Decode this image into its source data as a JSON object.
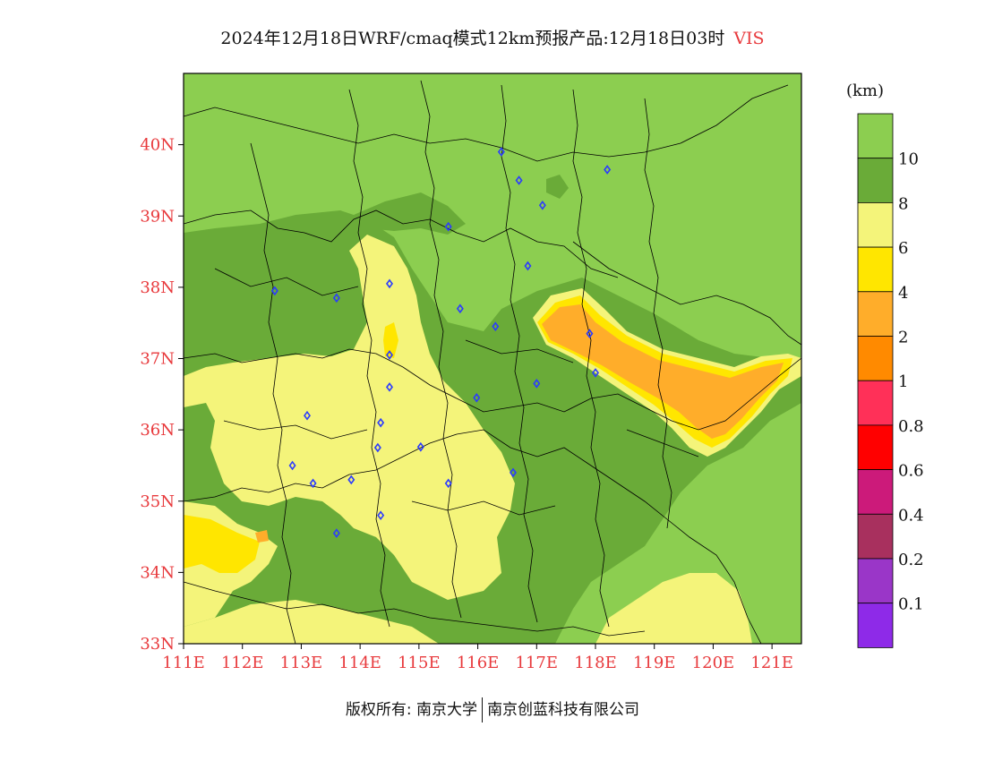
{
  "title": {
    "main": "2024年12月18日WRF/cmaq模式12km预报产品:12月18日03时",
    "variable": "VIS"
  },
  "colorbar": {
    "unit": "(km)",
    "bands": [
      {
        "color": "#8cce50",
        "label": "10"
      },
      {
        "color": "#6aab38",
        "label": "8"
      },
      {
        "color": "#f4f47a",
        "label": "6"
      },
      {
        "color": "#ffe600",
        "label": "4"
      },
      {
        "color": "#ffad2a",
        "label": "2"
      },
      {
        "color": "#ff8a00",
        "label": "1"
      },
      {
        "color": "#ff3058",
        "label": "0.8"
      },
      {
        "color": "#ff0000",
        "label": "0.6"
      },
      {
        "color": "#cc1a7a",
        "label": "0.4"
      },
      {
        "color": "#a8305e",
        "label": "0.2"
      },
      {
        "color": "#9a36c8",
        "label": "0.1"
      },
      {
        "color": "#8e2ae8",
        "label": ""
      }
    ]
  },
  "axes": {
    "lat_labels": [
      "40N",
      "39N",
      "38N",
      "37N",
      "36N",
      "35N",
      "34N",
      "33N"
    ],
    "lon_labels": [
      "111E",
      "112E",
      "113E",
      "114E",
      "115E",
      "116E",
      "117E",
      "118E",
      "119E",
      "120E",
      "121E"
    ],
    "lat_range": [
      33,
      41
    ],
    "lon_range": [
      111,
      121.5
    ]
  },
  "stations": [
    [
      116.4,
      39.9
    ],
    [
      116.7,
      39.5
    ],
    [
      118.2,
      39.65
    ],
    [
      117.1,
      39.15
    ],
    [
      115.5,
      38.85
    ],
    [
      116.85,
      38.3
    ],
    [
      112.55,
      37.95
    ],
    [
      113.6,
      37.85
    ],
    [
      114.5,
      38.05
    ],
    [
      115.7,
      37.7
    ],
    [
      116.3,
      37.45
    ],
    [
      117.9,
      37.35
    ],
    [
      118.0,
      36.8
    ],
    [
      117.0,
      36.65
    ],
    [
      114.5,
      37.05
    ],
    [
      114.5,
      36.6
    ],
    [
      115.98,
      36.45
    ],
    [
      113.1,
      36.2
    ],
    [
      114.35,
      36.1
    ],
    [
      112.85,
      35.5
    ],
    [
      114.3,
      35.75
    ],
    [
      115.03,
      35.76
    ],
    [
      113.2,
      35.25
    ],
    [
      113.85,
      35.3
    ],
    [
      115.5,
      35.25
    ],
    [
      116.6,
      35.4
    ],
    [
      114.35,
      34.8
    ],
    [
      113.6,
      34.55
    ]
  ],
  "copyright": {
    "left": "版权所有: 南京大学",
    "right": "南京创蓝科技有限公司"
  }
}
